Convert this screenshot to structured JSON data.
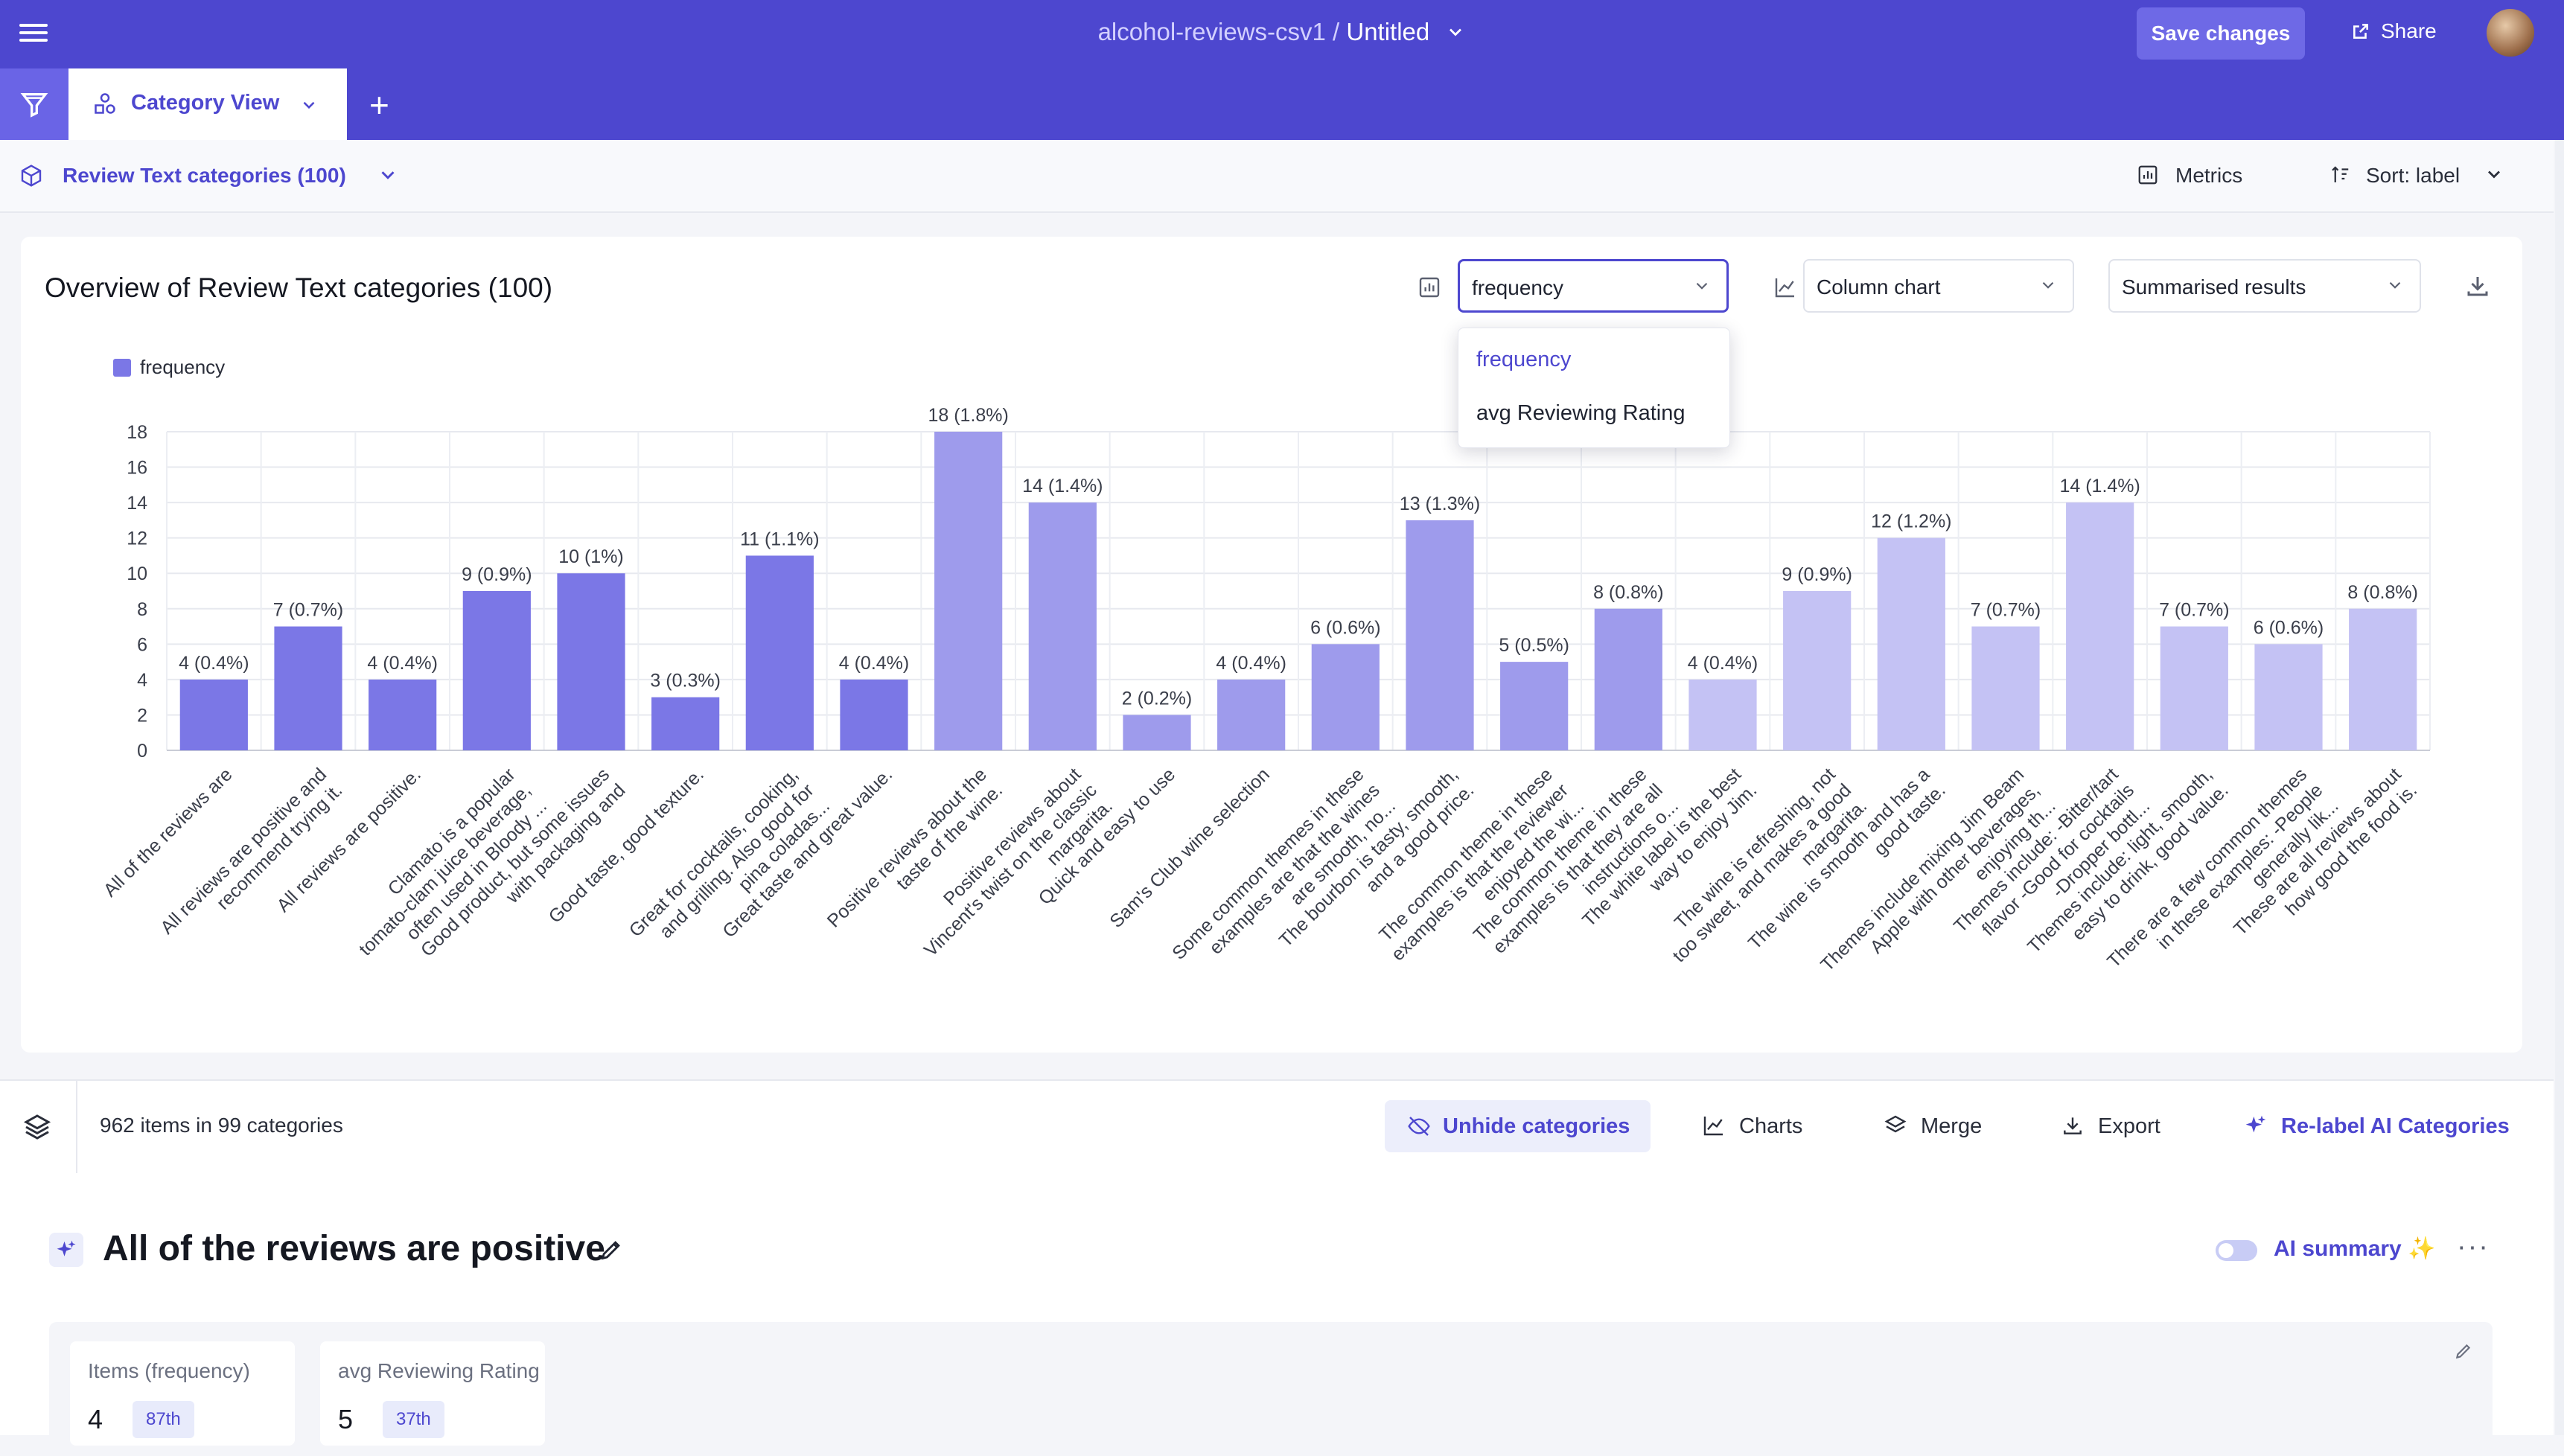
{
  "topbar": {
    "dataset": "alcohol-reviews-csv1",
    "separator": "/",
    "doc_title": "Untitled",
    "save_label": "Save changes",
    "share_label": "Share"
  },
  "tabs": {
    "active_label": "Category View",
    "add_label": "+"
  },
  "subheader": {
    "category_set": "Review Text categories (100)",
    "metrics_label": "Metrics",
    "sort_label": "Sort:",
    "sort_value": "label"
  },
  "chart_card": {
    "title": "Overview of Review Text categories (100)",
    "metric_select": "frequency",
    "chart_type_select": "Column chart",
    "results_select": "Summarised results",
    "dropdown_options": [
      "frequency",
      "avg Reviewing Rating"
    ]
  },
  "toolbar": {
    "count_text": "962 items in 99 categories",
    "unhide_label": "Unhide categories",
    "charts_label": "Charts",
    "merge_label": "Merge",
    "export_label": "Export",
    "relabel_label": "Re-label AI Categories"
  },
  "category_detail": {
    "title": "All of the reviews are positive",
    "ai_summary_label": "AI summary",
    "stats": [
      {
        "header": "Items (frequency)",
        "value": "4",
        "percentile": "87th"
      },
      {
        "header": "avg Reviewing Rating",
        "value": "5",
        "percentile": "37th"
      }
    ]
  },
  "colors": {
    "accent": "#4d47cf",
    "bar_dark": "#7b77e6",
    "bar_mid": "#9e9bec",
    "bar_light": "#c4c2f4"
  },
  "chart_data": {
    "type": "bar",
    "legend": [
      "frequency"
    ],
    "legend_position": "top-left",
    "ylim": [
      0,
      18
    ],
    "yticks": [
      0,
      2,
      4,
      6,
      8,
      10,
      12,
      14,
      16,
      18
    ],
    "grid": true,
    "categories": [
      "All of the reviews are",
      "All reviews are positive and\nrecommend trying it.",
      "All reviews are positive.",
      "Clamato is a popular\ntomato-clam juice beverage,\noften used in Bloody ...",
      "Good product, but some issues\nwith packaging and",
      "Good taste, good texture.",
      "Great for cocktails, cooking,\nand grilling. Also good for\npina coladas...",
      "Great taste and great value.",
      "Positive reviews about the\ntaste of the wine.",
      "Positive reviews about\nVincent's twist on the classic\nmargarita.",
      "Quick and easy to use",
      "Sam's Club wine selection",
      "Some common themes in these\nexamples are that the wines\nare smooth, no...",
      "The bourbon is tasty, smooth,\nand a good price.",
      "The common theme in these\nexamples is that the reviewer\nenjoyed the wi...",
      "The common theme in these\nexamples is that they are all\ninstructions o...",
      "The white label is the best\nway to enjoy Jim.",
      "The wine is refreshing, not\ntoo sweet, and makes a good\nmargarita.",
      "The wine is smooth and has a\ngood taste.",
      "Themes include mixing Jim Beam\nApple with other beverages,\nenjoying th...",
      "Themes include: -Bitter/tart\nflavor -Good for cocktails\n-Dropper bottl...",
      "Themes include: light, smooth,\neasy to drink, good value.",
      "There are a few common themes\nin these examples: -People\ngenerally lik...",
      "These are all reviews about\nhow good the food is."
    ],
    "values": [
      4,
      7,
      4,
      9,
      10,
      3,
      11,
      4,
      18,
      14,
      2,
      4,
      6,
      13,
      5,
      8,
      4,
      9,
      12,
      7,
      14,
      7,
      6,
      8
    ],
    "data_labels": [
      "4 (0.4%)",
      "7 (0.7%)",
      "4 (0.4%)",
      "9 (0.9%)",
      "10 (1%)",
      "3 (0.3%)",
      "11 (1.1%)",
      "4 (0.4%)",
      "18 (1.8%)",
      "14 (1.4%)",
      "2 (0.2%)",
      "4 (0.4%)",
      "6 (0.6%)",
      "13 (1.3%)",
      "5 (0.5%)",
      "8 (0.8%)",
      "4 (0.4%)",
      "9 (0.9%)",
      "12 (1.2%)",
      "7 (0.7%)",
      "14 (1.4%)",
      "7 (0.7%)",
      "6 (0.6%)",
      "8 (0.8%)"
    ]
  }
}
